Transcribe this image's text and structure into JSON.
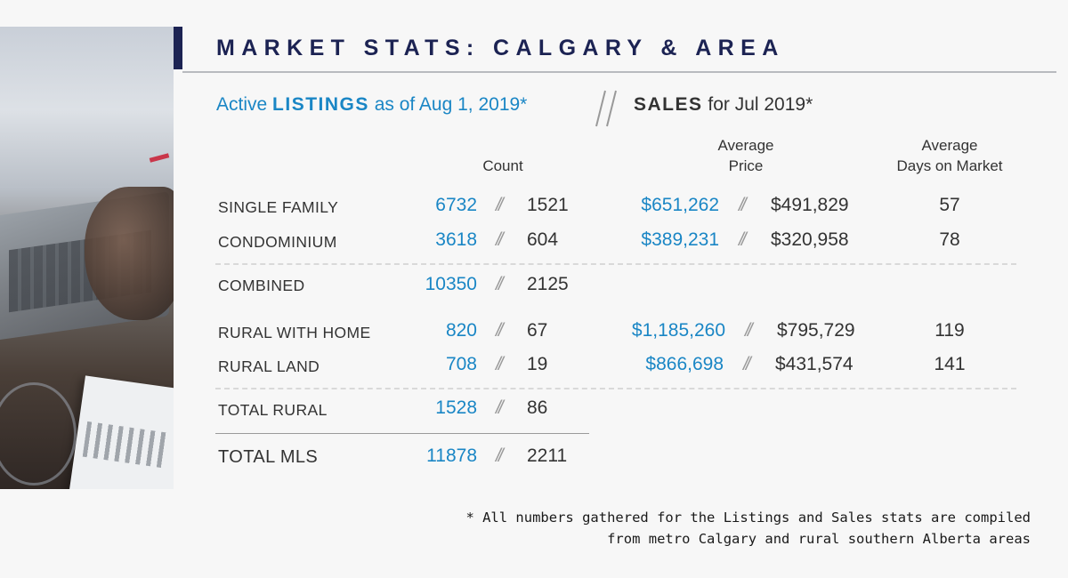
{
  "title": "MARKET STATS: CALGARY & AREA",
  "headers": {
    "listings_prefix": "Active",
    "listings_bold": "LISTINGS",
    "listings_suffix": "as of Aug 1, 2019*",
    "sales_bold": "SALES",
    "sales_suffix": "for Jul 2019*",
    "separator": "//"
  },
  "columns": {
    "count": "Count",
    "avg_price_line1": "Average",
    "avg_price_line2": "Price",
    "avg_days_line1": "Average",
    "avg_days_line2": "Days on Market"
  },
  "rows": [
    {
      "label": "SINGLE FAMILY",
      "listings": "6732",
      "sales": "1521",
      "avg_list_price": "$651,262",
      "avg_sale_price": "$491,829",
      "days": "57"
    },
    {
      "label": "CONDOMINIUM",
      "listings": "3618",
      "sales": "604",
      "avg_list_price": "$389,231",
      "avg_sale_price": "$320,958",
      "days": "78"
    },
    {
      "label": "COMBINED",
      "listings": "10350",
      "sales": "2125"
    },
    {
      "label": "RURAL WITH HOME",
      "listings": "820",
      "sales": "67",
      "avg_list_price": "$1,185,260",
      "avg_sale_price": "$795,729",
      "days": "119"
    },
    {
      "label": "RURAL LAND",
      "listings": "708",
      "sales": "19",
      "avg_list_price": "$866,698",
      "avg_sale_price": "$431,574",
      "days": "141"
    },
    {
      "label": "TOTAL RURAL",
      "listings": "1528",
      "sales": "86"
    },
    {
      "label": "TOTAL MLS",
      "listings": "11878",
      "sales": "2211"
    }
  ],
  "sep": "//",
  "footnote_line1": "* All numbers gathered for the Listings and Sales stats are compiled",
  "footnote_line2": "from metro Calgary and rural southern Alberta areas",
  "colors": {
    "navy": "#1c2353",
    "blue": "#1a86c5",
    "text": "#333333"
  }
}
